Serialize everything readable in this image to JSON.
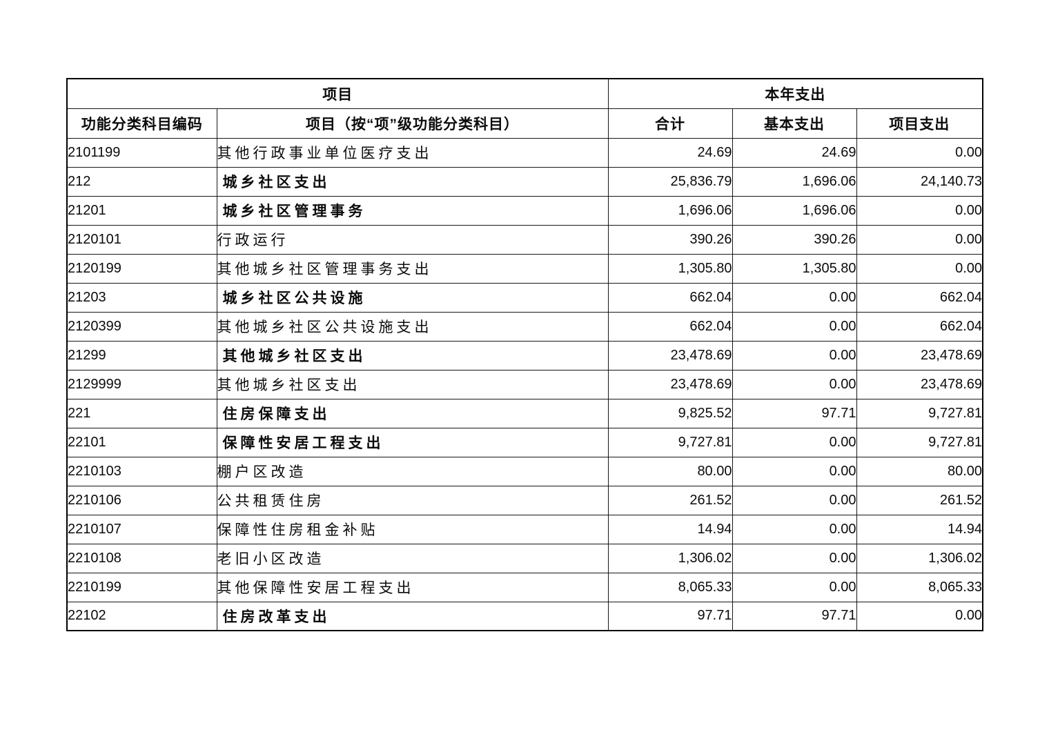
{
  "page": {
    "background_color": "#ffffff",
    "border_color": "#000000",
    "text_color": "#0b0b0b"
  },
  "table": {
    "header_row1": {
      "project_group": "项目",
      "year_expense_group": "本年支出"
    },
    "header_row2": {
      "code": "功能分类科目编码",
      "item": "项目（按“项”级功能分类科目）",
      "total": "合计",
      "basic": "基本支出",
      "project": "项目支出"
    },
    "rows": [
      {
        "code": "2101199",
        "name": "其他行政事业单位医疗支出",
        "total": "24.69",
        "basic": "24.69",
        "project": "0.00",
        "level": "detail"
      },
      {
        "code": "212",
        "name": "城乡社区支出",
        "total": "25,836.79",
        "basic": "1,696.06",
        "project": "24,140.73",
        "level": "summary"
      },
      {
        "code": "21201",
        "name": "城乡社区管理事务",
        "total": "1,696.06",
        "basic": "1,696.06",
        "project": "0.00",
        "level": "summary"
      },
      {
        "code": "2120101",
        "name": "行政运行",
        "total": "390.26",
        "basic": "390.26",
        "project": "0.00",
        "level": "detail"
      },
      {
        "code": "2120199",
        "name": "其他城乡社区管理事务支出",
        "total": "1,305.80",
        "basic": "1,305.80",
        "project": "0.00",
        "level": "detail"
      },
      {
        "code": "21203",
        "name": "城乡社区公共设施",
        "total": "662.04",
        "basic": "0.00",
        "project": "662.04",
        "level": "summary"
      },
      {
        "code": "2120399",
        "name": "其他城乡社区公共设施支出",
        "total": "662.04",
        "basic": "0.00",
        "project": "662.04",
        "level": "detail"
      },
      {
        "code": "21299",
        "name": "其他城乡社区支出",
        "total": "23,478.69",
        "basic": "0.00",
        "project": "23,478.69",
        "level": "summary"
      },
      {
        "code": "2129999",
        "name": "其他城乡社区支出",
        "total": "23,478.69",
        "basic": "0.00",
        "project": "23,478.69",
        "level": "detail"
      },
      {
        "code": "221",
        "name": "住房保障支出",
        "total": "9,825.52",
        "basic": "97.71",
        "project": "9,727.81",
        "level": "summary"
      },
      {
        "code": "22101",
        "name": "保障性安居工程支出",
        "total": "9,727.81",
        "basic": "0.00",
        "project": "9,727.81",
        "level": "summary"
      },
      {
        "code": "2210103",
        "name": "棚户区改造",
        "total": "80.00",
        "basic": "0.00",
        "project": "80.00",
        "level": "detail"
      },
      {
        "code": "2210106",
        "name": "公共租赁住房",
        "total": "261.52",
        "basic": "0.00",
        "project": "261.52",
        "level": "detail"
      },
      {
        "code": "2210107",
        "name": "保障性住房租金补贴",
        "total": "14.94",
        "basic": "0.00",
        "project": "14.94",
        "level": "detail"
      },
      {
        "code": "2210108",
        "name": "老旧小区改造",
        "total": "1,306.02",
        "basic": "0.00",
        "project": "1,306.02",
        "level": "detail"
      },
      {
        "code": "2210199",
        "name": "其他保障性安居工程支出",
        "total": "8,065.33",
        "basic": "0.00",
        "project": "8,065.33",
        "level": "detail"
      },
      {
        "code": "22102",
        "name": "住房改革支出",
        "total": "97.71",
        "basic": "97.71",
        "project": "0.00",
        "level": "summary"
      }
    ]
  }
}
